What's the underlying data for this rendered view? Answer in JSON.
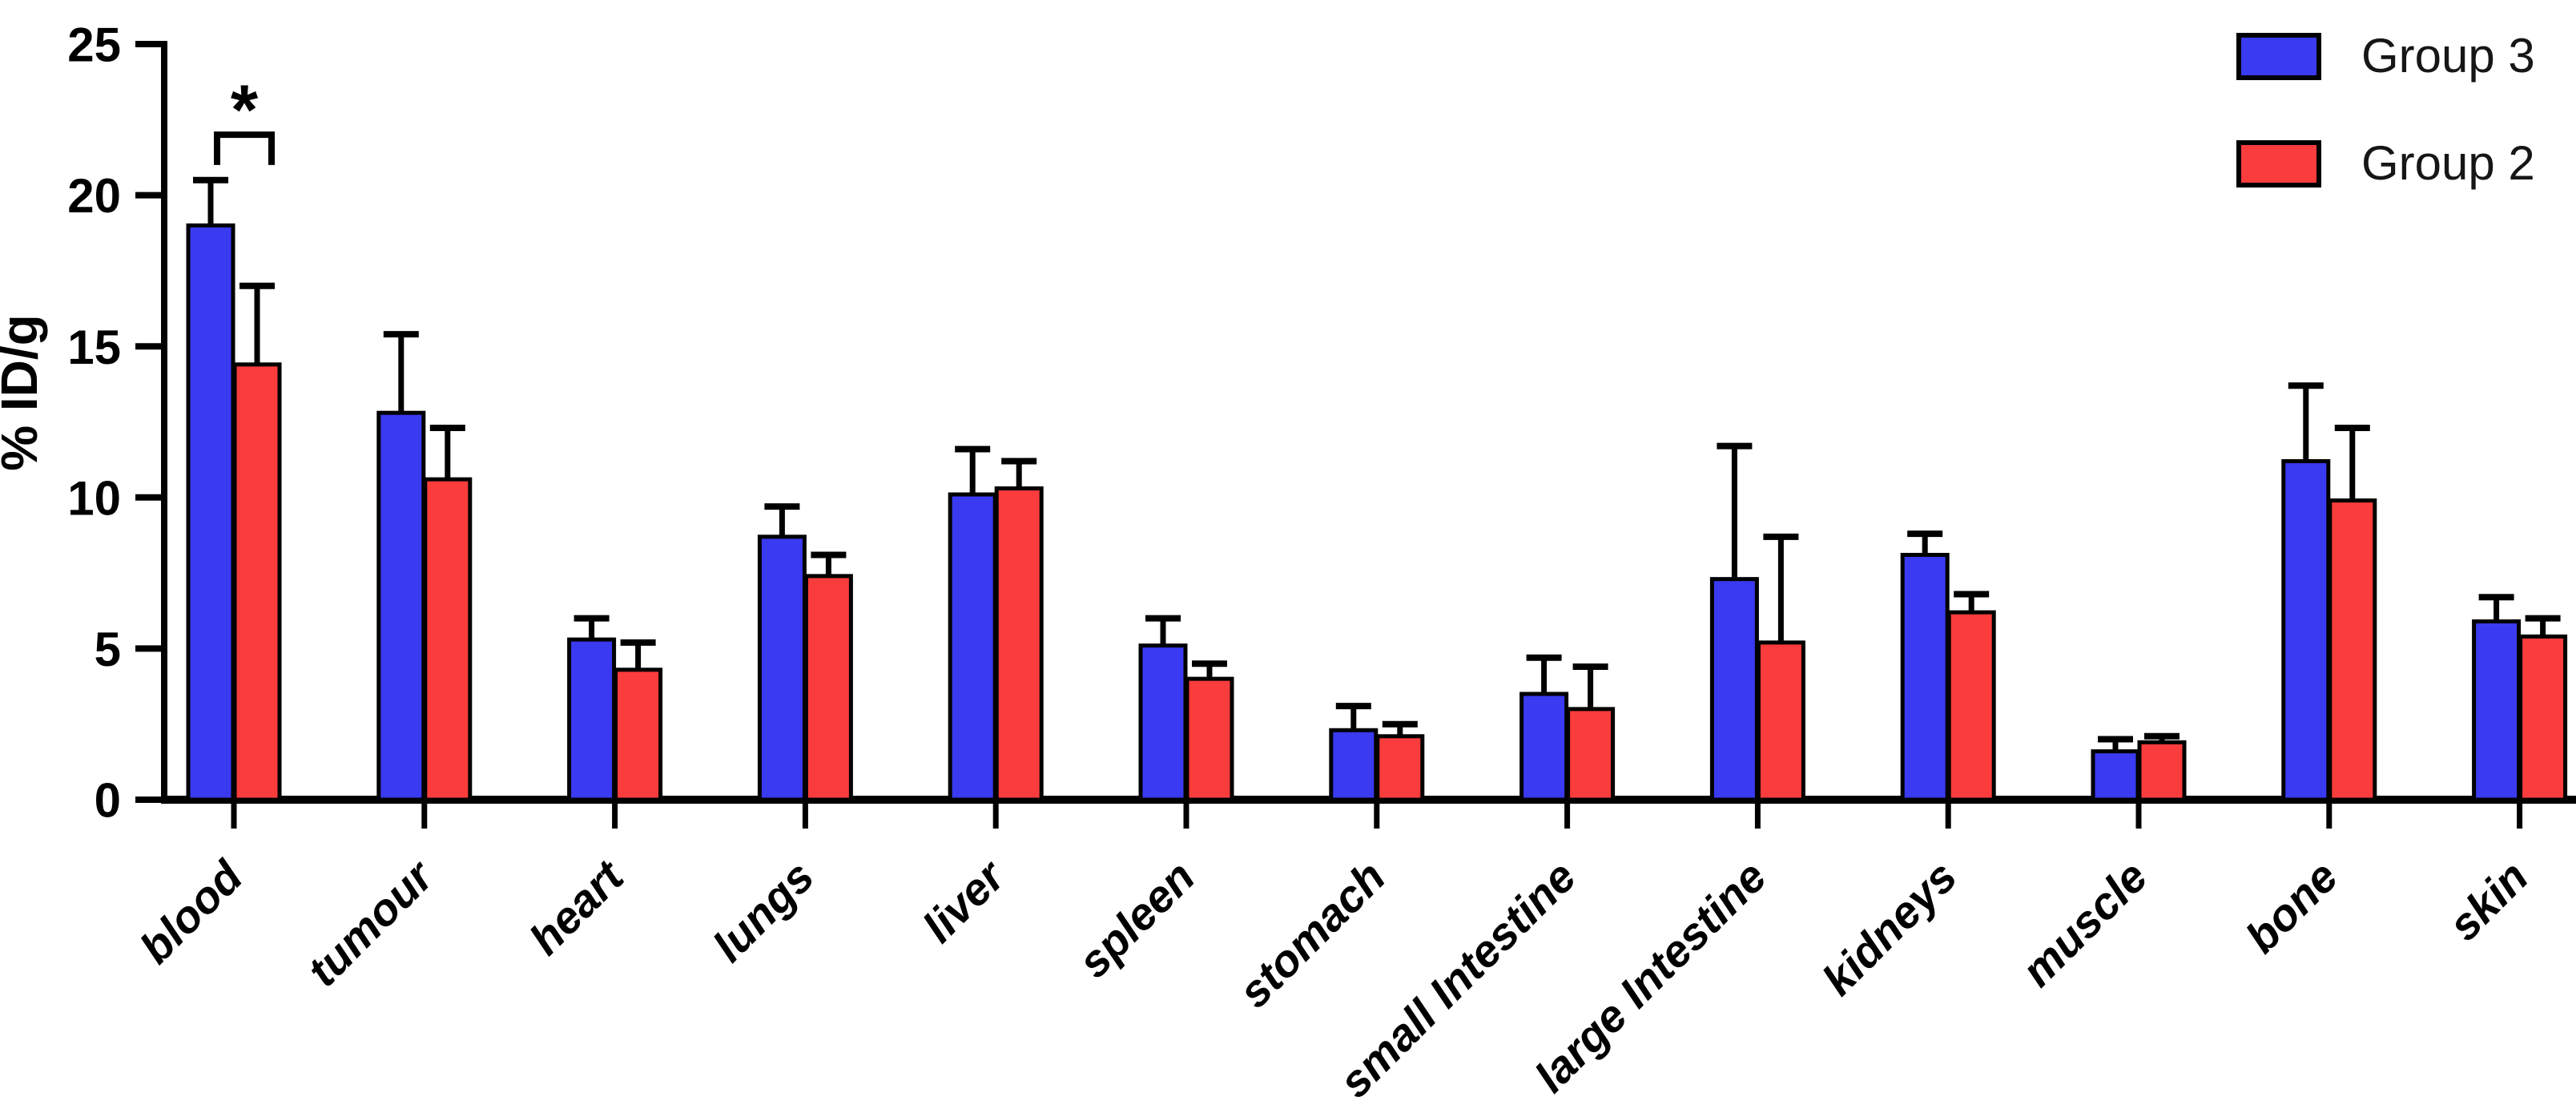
{
  "chart_data": {
    "type": "bar",
    "title": "",
    "ylabel": "% ID/g",
    "ylim": [
      0,
      25
    ],
    "yticks": [
      0,
      5,
      10,
      15,
      20,
      25
    ],
    "grid": false,
    "legend_position": "top-right",
    "categories": [
      "blood",
      "tumour",
      "heart",
      "lungs",
      "liver",
      "spleen",
      "stomach",
      "small Intestine",
      "large Intestine",
      "kidneys",
      "muscle",
      "bone",
      "skin"
    ],
    "series": [
      {
        "name": "Group 3",
        "color": "#3A3AF0",
        "values": [
          19.0,
          12.8,
          5.3,
          8.7,
          10.1,
          5.1,
          2.3,
          3.5,
          7.3,
          8.1,
          1.6,
          11.2,
          5.9
        ],
        "errors_upper": [
          1.5,
          2.6,
          0.7,
          1.0,
          1.5,
          0.9,
          0.8,
          1.2,
          4.4,
          0.7,
          0.4,
          2.5,
          0.8
        ]
      },
      {
        "name": "Group 2",
        "color": "#FA3C3C",
        "values": [
          14.4,
          10.6,
          4.3,
          7.4,
          10.3,
          4.0,
          2.1,
          3.0,
          5.2,
          6.2,
          1.9,
          9.9,
          5.4
        ],
        "errors_upper": [
          2.6,
          1.7,
          0.9,
          0.7,
          0.9,
          0.5,
          0.4,
          1.4,
          3.5,
          0.6,
          0.2,
          2.4,
          0.6
        ]
      }
    ],
    "significance": {
      "label": "*",
      "category": "blood",
      "bracket_y_value": 22.0,
      "bracket_leg_to_value": 21.0,
      "star_y_value": 23.3
    }
  }
}
